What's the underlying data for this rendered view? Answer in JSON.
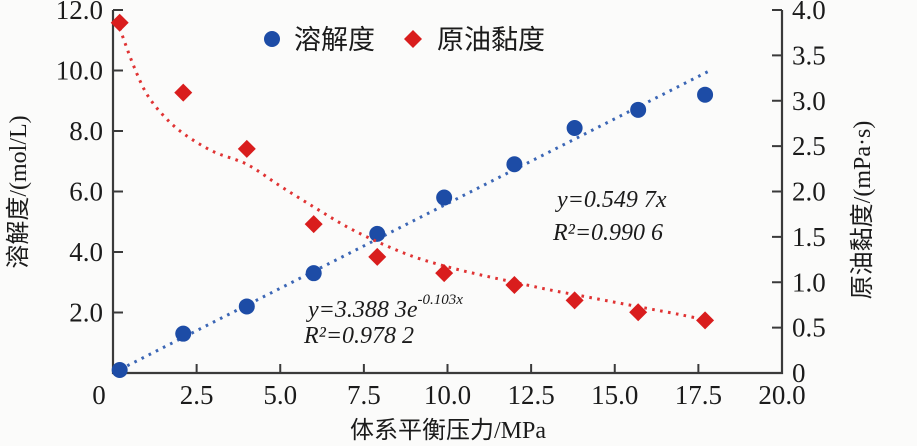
{
  "chart_data": {
    "type": "scatter",
    "title": "",
    "grid": false,
    "background": "#fbfbfa",
    "x_axis": {
      "label": "体系平衡压力/MPa",
      "range": [
        0,
        20
      ],
      "ticks": [
        0,
        2.5,
        5.0,
        7.5,
        10.0,
        12.5,
        15.0,
        17.5,
        20.0
      ],
      "tick_labels": [
        "0",
        "2.5",
        "5.0",
        "7.5",
        "10.0",
        "12.5",
        "15.0",
        "17.5",
        "20.0"
      ]
    },
    "y_axis_left": {
      "label": "溶解度/(mol/L)",
      "range": [
        0,
        12
      ],
      "ticks": [
        2.0,
        4.0,
        6.0,
        8.0,
        10.0,
        12.0
      ],
      "tick_labels": [
        "2.0",
        "4.0",
        "6.0",
        "8.0",
        "10.0",
        "12.0"
      ]
    },
    "y_axis_right": {
      "label": "原油黏度/(mPa·s)",
      "range": [
        0,
        4
      ],
      "ticks": [
        0,
        0.5,
        1.0,
        1.5,
        2.0,
        2.5,
        3.0,
        3.5,
        4.0
      ],
      "tick_labels": [
        "0",
        "0.5",
        "1.0",
        "1.5",
        "2.0",
        "2.5",
        "3.0",
        "3.5",
        "4.0"
      ]
    },
    "legend": {
      "position": "top-center"
    },
    "series": [
      {
        "name": "溶解度",
        "axis": "left",
        "marker": "circle",
        "color": "#1d4ca6",
        "line_color": "#3b66b5",
        "x": [
          0.2,
          2.1,
          4.0,
          6.0,
          7.9,
          9.9,
          12.0,
          13.8,
          15.7,
          17.7
        ],
        "y": [
          0.1,
          1.3,
          2.2,
          3.3,
          4.6,
          5.8,
          6.9,
          8.1,
          8.7,
          9.2
        ],
        "trendline": {
          "type": "linear",
          "style": "dotted",
          "equation": "y=0.549 7x",
          "r_squared": "R²=0.990 6",
          "start": [
            0,
            0
          ],
          "end": [
            17.85,
            10.0
          ]
        }
      },
      {
        "name": "原油黏度",
        "axis": "right",
        "marker": "diamond",
        "color": "#d91d1d",
        "line_color": "#e03333",
        "x": [
          0.2,
          2.1,
          4.0,
          6.0,
          7.9,
          9.9,
          12.0,
          13.8,
          15.7,
          17.7
        ],
        "y": [
          3.86,
          3.09,
          2.47,
          1.64,
          1.28,
          1.1,
          0.97,
          0.8,
          0.67,
          0.58
        ],
        "trendline": {
          "type": "exponential",
          "style": "dotted",
          "equation_base": "y=3.388 3e",
          "equation_exponent": "-0.103x",
          "r_squared": "R²=0.978 2",
          "curve": [
            [
              0.2,
              3.8
            ],
            [
              0.6,
              3.4
            ],
            [
              1.0,
              3.08
            ],
            [
              1.5,
              2.84
            ],
            [
              2.1,
              2.64
            ],
            [
              3.0,
              2.44
            ],
            [
              4.0,
              2.3
            ],
            [
              5.0,
              2.06
            ],
            [
              6.0,
              1.83
            ],
            [
              7.0,
              1.61
            ],
            [
              8.0,
              1.43
            ],
            [
              9.0,
              1.28
            ],
            [
              10.0,
              1.17
            ],
            [
              11.0,
              1.08
            ],
            [
              12.0,
              1.0
            ],
            [
              13.0,
              0.92
            ],
            [
              14.0,
              0.85
            ],
            [
              15.0,
              0.78
            ],
            [
              16.0,
              0.71
            ],
            [
              17.0,
              0.64
            ],
            [
              17.9,
              0.57
            ]
          ]
        }
      }
    ]
  }
}
